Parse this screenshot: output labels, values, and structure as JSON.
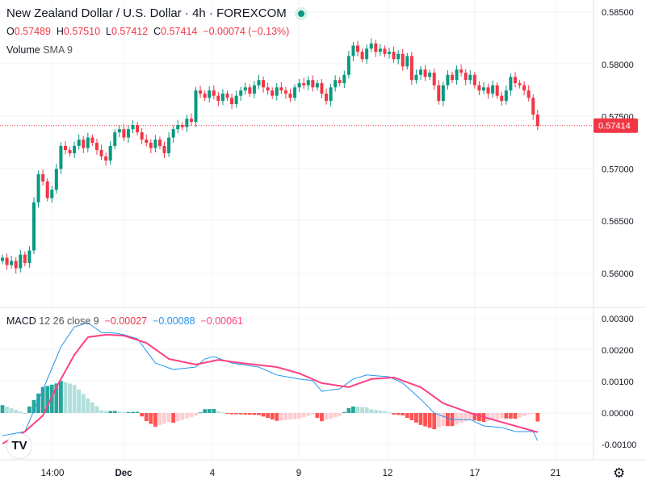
{
  "header": {
    "title": "New Zealand Dollar / U.S. Dollar · 4h · FOREXCOM",
    "o_label": "O",
    "o": "0.57489",
    "h_label": "H",
    "h": "0.57510",
    "l_label": "L",
    "l": "0.57412",
    "c_label": "C",
    "c": "0.57414",
    "change": "−0.00074 (−0.13%)",
    "volume_label": "Volume",
    "volume_sma": "SMA 9"
  },
  "macd_legend": {
    "label": "MACD",
    "params": "12 26 close 9",
    "hist": "−0.00027",
    "macd": "−0.00088",
    "signal": "−0.00061"
  },
  "logo": "TV",
  "colors": {
    "up": "#089981",
    "down": "#f23645",
    "macd": "#2196f3",
    "signal": "#ff4081",
    "hist_up": "#26a69a",
    "hist_up_light": "#b2dfdb",
    "hist_down": "#ff5252",
    "hist_down_light": "#ffcdd2"
  },
  "chart_data": [
    {
      "type": "candlestick",
      "title": "New Zealand Dollar / U.S. Dollar · 4h · FOREXCOM",
      "ylim": [
        0.5585,
        0.586
      ],
      "y_ticks": [
        "0.58500",
        "0.58000",
        "0.57500",
        "0.57000",
        "0.56500",
        "0.56000"
      ],
      "last_price": "0.57414",
      "closes": [
        0.5615,
        0.5608,
        0.5612,
        0.5605,
        0.5618,
        0.561,
        0.5622,
        0.5668,
        0.5695,
        0.5688,
        0.5672,
        0.568,
        0.57,
        0.5722,
        0.5718,
        0.5715,
        0.5722,
        0.5728,
        0.572,
        0.573,
        0.5725,
        0.5718,
        0.5712,
        0.5708,
        0.5722,
        0.5735,
        0.5738,
        0.573,
        0.5738,
        0.5742,
        0.5735,
        0.5728,
        0.5725,
        0.572,
        0.5728,
        0.5722,
        0.5715,
        0.573,
        0.5738,
        0.5742,
        0.574,
        0.5748,
        0.5745,
        0.5775,
        0.5772,
        0.5768,
        0.5775,
        0.577,
        0.5765,
        0.5772,
        0.5768,
        0.5762,
        0.577,
        0.5775,
        0.5778,
        0.5772,
        0.578,
        0.5785,
        0.5778,
        0.5775,
        0.577,
        0.5778,
        0.5775,
        0.5772,
        0.5768,
        0.5778,
        0.5782,
        0.578,
        0.5785,
        0.5778,
        0.5782,
        0.5772,
        0.5765,
        0.5778,
        0.5785,
        0.5782,
        0.579,
        0.5808,
        0.5818,
        0.5812,
        0.5805,
        0.5815,
        0.582,
        0.5812,
        0.5815,
        0.581,
        0.5812,
        0.5805,
        0.581,
        0.5798,
        0.5808,
        0.5785,
        0.579,
        0.5795,
        0.5788,
        0.5792,
        0.578,
        0.5765,
        0.578,
        0.579,
        0.5785,
        0.5795,
        0.5792,
        0.5785,
        0.579,
        0.578,
        0.5775,
        0.5778,
        0.5772,
        0.578,
        0.577,
        0.5765,
        0.5775,
        0.5788,
        0.5782,
        0.578,
        0.5775,
        0.5768,
        0.5752,
        0.5741
      ],
      "first_open": 0.5612,
      "x_ticks": [
        "14:00",
        "Dec",
        "4",
        "9",
        "12",
        "17",
        "21"
      ]
    },
    {
      "type": "line+bar",
      "title": "MACD 12 26 close 9",
      "ylim": [
        -0.0013,
        0.0031
      ],
      "y_ticks": [
        "0.00300",
        "0.00200",
        "0.00100",
        "0.00000",
        "-0.00100"
      ],
      "macd_keypoints": [
        [
          0,
          -0.00072
        ],
        [
          5,
          -0.00059
        ],
        [
          10,
          0.00108
        ],
        [
          13,
          0.0021
        ],
        [
          16,
          0.00274
        ],
        [
          19,
          0.00287
        ],
        [
          22,
          0.00256
        ],
        [
          25,
          0.00254
        ],
        [
          27,
          0.00249
        ],
        [
          30,
          0.00236
        ],
        [
          34,
          0.00159
        ],
        [
          38,
          0.00138
        ],
        [
          43,
          0.00146
        ],
        [
          45,
          0.00172
        ],
        [
          47,
          0.00179
        ],
        [
          51,
          0.00159
        ],
        [
          57,
          0.00146
        ],
        [
          61,
          0.00121
        ],
        [
          66,
          0.00108
        ],
        [
          69,
          0.00103
        ],
        [
          71,
          0.00069
        ],
        [
          75,
          0.00077
        ],
        [
          78,
          0.00108
        ],
        [
          81,
          0.00121
        ],
        [
          86,
          0.00115
        ],
        [
          89,
          0.00095
        ],
        [
          93,
          0.00044
        ],
        [
          96,
          0
        ],
        [
          100,
          -0.00021
        ],
        [
          104,
          -0.00021
        ],
        [
          107,
          -0.00041
        ],
        [
          111,
          -0.00046
        ],
        [
          114,
          -0.00059
        ],
        [
          118,
          -0.00059
        ],
        [
          119,
          -0.00088
        ]
      ],
      "signal_keypoints": [
        [
          0,
          -0.00097
        ],
        [
          5,
          -0.00059
        ],
        [
          9,
          -8e-05
        ],
        [
          12,
          0.00082
        ],
        [
          16,
          0.00185
        ],
        [
          19,
          0.00241
        ],
        [
          23,
          0.00249
        ],
        [
          27,
          0.00246
        ],
        [
          32,
          0.00223
        ],
        [
          37,
          0.00172
        ],
        [
          43,
          0.00154
        ],
        [
          48,
          0.00169
        ],
        [
          53,
          0.00159
        ],
        [
          61,
          0.00146
        ],
        [
          66,
          0.00126
        ],
        [
          71,
          0.00095
        ],
        [
          77,
          0.00082
        ],
        [
          82,
          0.00108
        ],
        [
          87,
          0.00113
        ],
        [
          93,
          0.00082
        ],
        [
          98,
          0.00031
        ],
        [
          104,
          0
        ],
        [
          109,
          -0.00021
        ],
        [
          114,
          -0.00041
        ],
        [
          119,
          -0.00061
        ]
      ]
    }
  ]
}
